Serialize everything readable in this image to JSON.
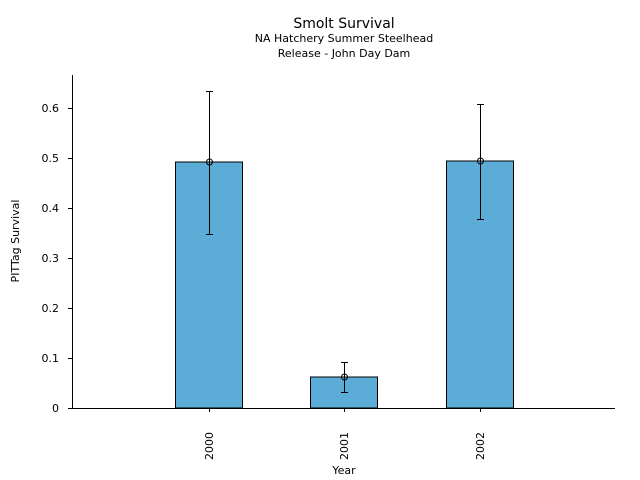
{
  "chart_data": {
    "type": "bar",
    "title": "Smolt Survival",
    "subtitle_lines": [
      "NA Hatchery Summer Steelhead",
      "Release - John Day Dam"
    ],
    "xlabel": "Year",
    "ylabel": "PITTag Survival",
    "categories": [
      "2000",
      "2001",
      "2002"
    ],
    "values": [
      0.492,
      0.062,
      0.494
    ],
    "error_low": [
      0.348,
      0.032,
      0.378
    ],
    "error_high": [
      0.634,
      0.092,
      0.608
    ],
    "ylim": [
      0,
      0.665
    ],
    "yticks": [
      0,
      0.1,
      0.2,
      0.3,
      0.4,
      0.5,
      0.6
    ],
    "ytick_labels": [
      "0",
      "0.1",
      "0.2",
      "0.3",
      "0.4",
      "0.5",
      "0.6"
    ],
    "grid": false,
    "bar_color": "#5bacd6"
  }
}
